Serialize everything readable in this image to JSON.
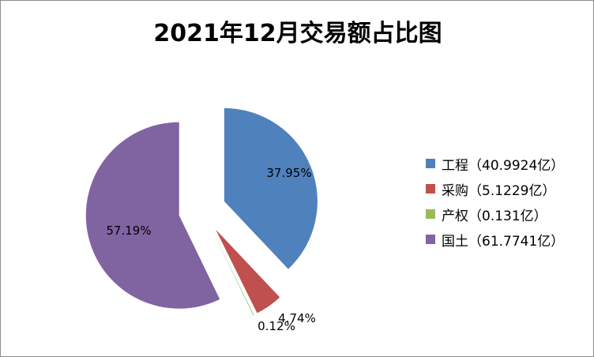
{
  "chart_data": {
    "type": "pie",
    "title": "2021年12月交易额占比图",
    "categories": [
      "工程",
      "采购",
      "产权",
      "国土"
    ],
    "values": [
      40.9924,
      5.1229,
      0.131,
      61.7741
    ],
    "percent_labels": [
      "37.95%",
      "4.74%",
      "0.12%",
      "57.19%"
    ],
    "legend_labels": [
      "工程（40.9924亿）",
      "采购（5.1229亿）",
      "产权（0.131亿）",
      "国土（61.7741亿）"
    ],
    "colors": [
      "#4f81bd",
      "#c0504d",
      "#9bbb59",
      "#8064a2"
    ],
    "exploded": true,
    "legend_position": "right"
  }
}
